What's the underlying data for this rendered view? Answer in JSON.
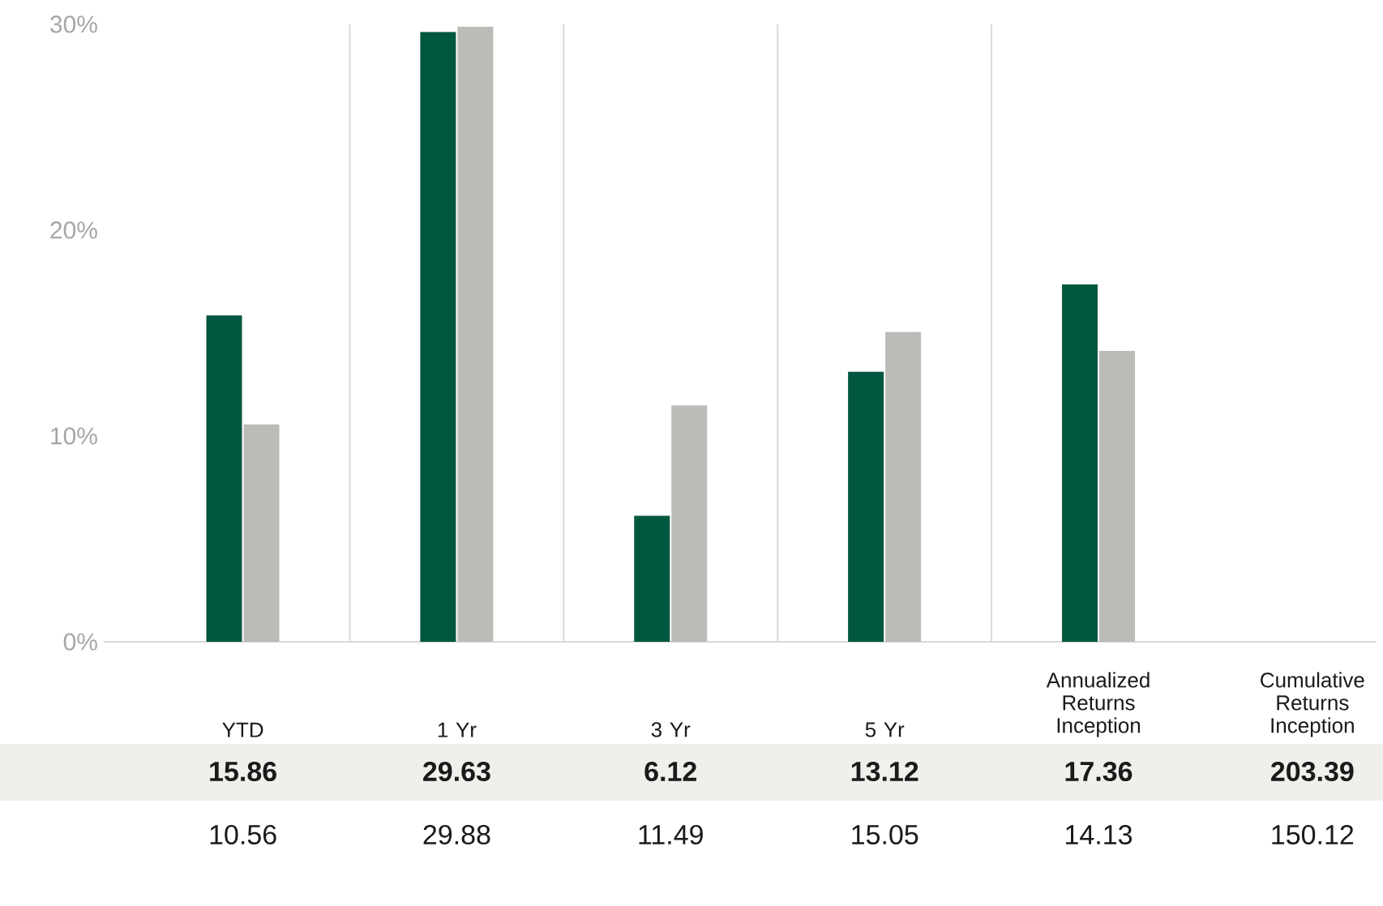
{
  "chart_data": {
    "type": "bar",
    "categories": [
      "YTD",
      "1 Yr",
      "3 Yr",
      "5 Yr",
      "Annualized Returns Inception",
      "Cumulative Returns Inception"
    ],
    "series": [
      {
        "color": "#00573f",
        "values": [
          15.86,
          29.63,
          6.12,
          13.12,
          17.36,
          null
        ],
        "value_labels": [
          "15.86",
          "29.63",
          "6.12",
          "13.12",
          "17.36",
          "203.39"
        ]
      },
      {
        "color": "#bbbcb7",
        "values": [
          10.56,
          29.88,
          11.49,
          15.05,
          14.13,
          null
        ],
        "value_labels": [
          "10.56",
          "29.88",
          "11.49",
          "15.05",
          "14.13",
          "150.12"
        ]
      }
    ],
    "ylim": [
      0,
      30
    ],
    "yticks": [
      {
        "value": 0,
        "label": "0%"
      },
      {
        "value": 10,
        "label": "10%"
      },
      {
        "value": 20,
        "label": "20%"
      },
      {
        "value": 30,
        "label": "30%"
      }
    ],
    "grid": "x"
  }
}
